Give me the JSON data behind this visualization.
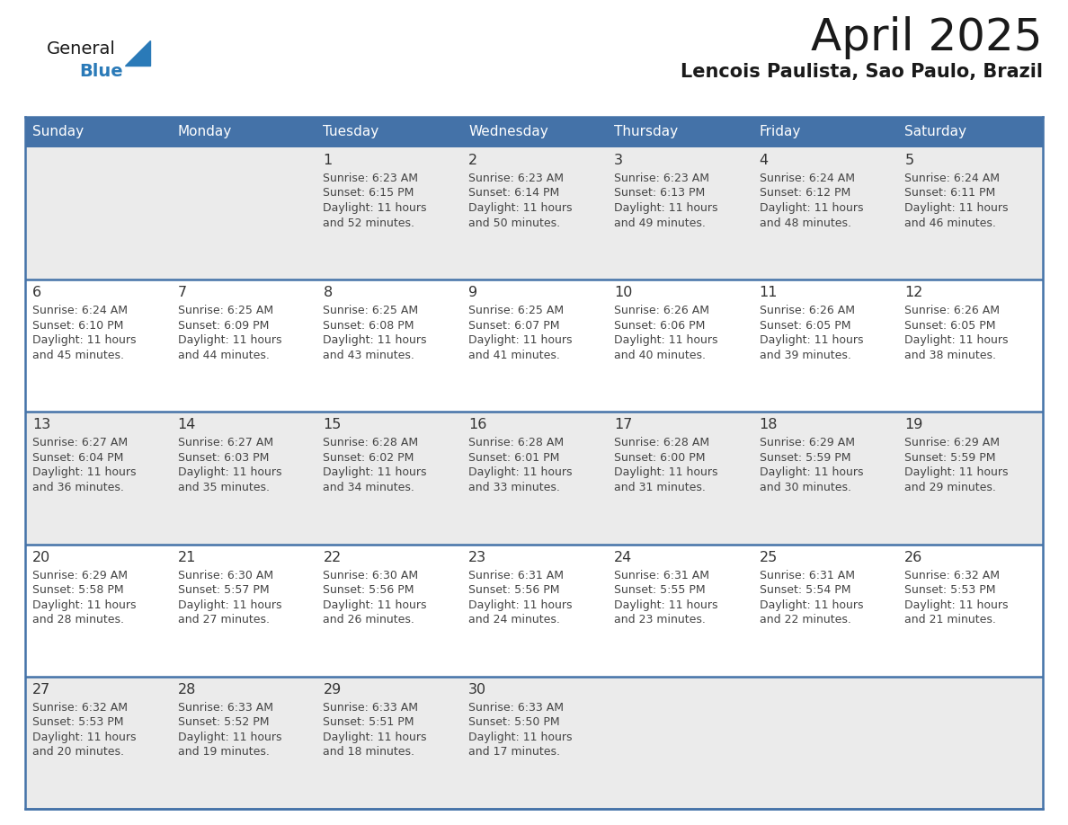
{
  "title": "April 2025",
  "subtitle": "Lencois Paulista, Sao Paulo, Brazil",
  "days_of_week": [
    "Sunday",
    "Monday",
    "Tuesday",
    "Wednesday",
    "Thursday",
    "Friday",
    "Saturday"
  ],
  "header_bg": "#4472a8",
  "header_text": "#ffffff",
  "cell_bg_odd": "#ebebeb",
  "cell_bg_even": "#ffffff",
  "grid_line_color": "#4472a8",
  "day_number_color": "#333333",
  "cell_text_color": "#444444",
  "logo_general_color": "#1a1a1a",
  "logo_blue_color": "#2a7ab8",
  "calendar_data": [
    [
      {
        "day": null,
        "sunrise": null,
        "sunset": null,
        "daylight": null
      },
      {
        "day": null,
        "sunrise": null,
        "sunset": null,
        "daylight": null
      },
      {
        "day": 1,
        "sunrise": "6:23 AM",
        "sunset": "6:15 PM",
        "daylight": "11 hours and 52 minutes."
      },
      {
        "day": 2,
        "sunrise": "6:23 AM",
        "sunset": "6:14 PM",
        "daylight": "11 hours and 50 minutes."
      },
      {
        "day": 3,
        "sunrise": "6:23 AM",
        "sunset": "6:13 PM",
        "daylight": "11 hours and 49 minutes."
      },
      {
        "day": 4,
        "sunrise": "6:24 AM",
        "sunset": "6:12 PM",
        "daylight": "11 hours and 48 minutes."
      },
      {
        "day": 5,
        "sunrise": "6:24 AM",
        "sunset": "6:11 PM",
        "daylight": "11 hours and 46 minutes."
      }
    ],
    [
      {
        "day": 6,
        "sunrise": "6:24 AM",
        "sunset": "6:10 PM",
        "daylight": "11 hours and 45 minutes."
      },
      {
        "day": 7,
        "sunrise": "6:25 AM",
        "sunset": "6:09 PM",
        "daylight": "11 hours and 44 minutes."
      },
      {
        "day": 8,
        "sunrise": "6:25 AM",
        "sunset": "6:08 PM",
        "daylight": "11 hours and 43 minutes."
      },
      {
        "day": 9,
        "sunrise": "6:25 AM",
        "sunset": "6:07 PM",
        "daylight": "11 hours and 41 minutes."
      },
      {
        "day": 10,
        "sunrise": "6:26 AM",
        "sunset": "6:06 PM",
        "daylight": "11 hours and 40 minutes."
      },
      {
        "day": 11,
        "sunrise": "6:26 AM",
        "sunset": "6:05 PM",
        "daylight": "11 hours and 39 minutes."
      },
      {
        "day": 12,
        "sunrise": "6:26 AM",
        "sunset": "6:05 PM",
        "daylight": "11 hours and 38 minutes."
      }
    ],
    [
      {
        "day": 13,
        "sunrise": "6:27 AM",
        "sunset": "6:04 PM",
        "daylight": "11 hours and 36 minutes."
      },
      {
        "day": 14,
        "sunrise": "6:27 AM",
        "sunset": "6:03 PM",
        "daylight": "11 hours and 35 minutes."
      },
      {
        "day": 15,
        "sunrise": "6:28 AM",
        "sunset": "6:02 PM",
        "daylight": "11 hours and 34 minutes."
      },
      {
        "day": 16,
        "sunrise": "6:28 AM",
        "sunset": "6:01 PM",
        "daylight": "11 hours and 33 minutes."
      },
      {
        "day": 17,
        "sunrise": "6:28 AM",
        "sunset": "6:00 PM",
        "daylight": "11 hours and 31 minutes."
      },
      {
        "day": 18,
        "sunrise": "6:29 AM",
        "sunset": "5:59 PM",
        "daylight": "11 hours and 30 minutes."
      },
      {
        "day": 19,
        "sunrise": "6:29 AM",
        "sunset": "5:59 PM",
        "daylight": "11 hours and 29 minutes."
      }
    ],
    [
      {
        "day": 20,
        "sunrise": "6:29 AM",
        "sunset": "5:58 PM",
        "daylight": "11 hours and 28 minutes."
      },
      {
        "day": 21,
        "sunrise": "6:30 AM",
        "sunset": "5:57 PM",
        "daylight": "11 hours and 27 minutes."
      },
      {
        "day": 22,
        "sunrise": "6:30 AM",
        "sunset": "5:56 PM",
        "daylight": "11 hours and 26 minutes."
      },
      {
        "day": 23,
        "sunrise": "6:31 AM",
        "sunset": "5:56 PM",
        "daylight": "11 hours and 24 minutes."
      },
      {
        "day": 24,
        "sunrise": "6:31 AM",
        "sunset": "5:55 PM",
        "daylight": "11 hours and 23 minutes."
      },
      {
        "day": 25,
        "sunrise": "6:31 AM",
        "sunset": "5:54 PM",
        "daylight": "11 hours and 22 minutes."
      },
      {
        "day": 26,
        "sunrise": "6:32 AM",
        "sunset": "5:53 PM",
        "daylight": "11 hours and 21 minutes."
      }
    ],
    [
      {
        "day": 27,
        "sunrise": "6:32 AM",
        "sunset": "5:53 PM",
        "daylight": "11 hours and 20 minutes."
      },
      {
        "day": 28,
        "sunrise": "6:33 AM",
        "sunset": "5:52 PM",
        "daylight": "11 hours and 19 minutes."
      },
      {
        "day": 29,
        "sunrise": "6:33 AM",
        "sunset": "5:51 PM",
        "daylight": "11 hours and 18 minutes."
      },
      {
        "day": 30,
        "sunrise": "6:33 AM",
        "sunset": "5:50 PM",
        "daylight": "11 hours and 17 minutes."
      },
      {
        "day": null,
        "sunrise": null,
        "sunset": null,
        "daylight": null
      },
      {
        "day": null,
        "sunrise": null,
        "sunset": null,
        "daylight": null
      },
      {
        "day": null,
        "sunrise": null,
        "sunset": null,
        "daylight": null
      }
    ]
  ]
}
